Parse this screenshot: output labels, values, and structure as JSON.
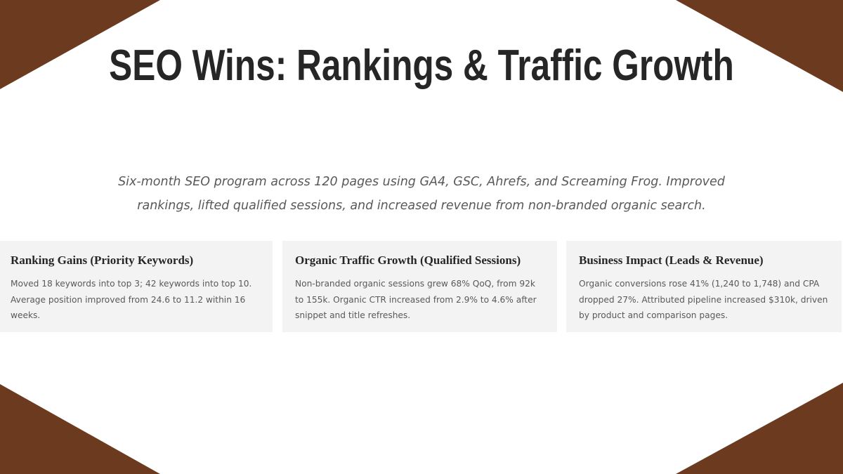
{
  "colors": {
    "accent": "#6b3a1f",
    "card_background": "#f3f3f3",
    "title": "#262626"
  },
  "title": "SEO Wins: Rankings & Traffic Growth",
  "subtitle": "Six-month SEO program across 120 pages using GA4, GSC, Ahrefs, and Screaming Frog. Improved rankings, lifted qualified sessions, and increased revenue from non-branded organic search.",
  "cards": [
    {
      "heading": "Ranking Gains (Priority Keywords)",
      "body": "Moved 18 keywords into top 3; 42 keywords into top 10. Average position improved from 24.6 to 11.2 within 16 weeks."
    },
    {
      "heading": "Organic Traffic Growth (Qualified Sessions)",
      "body": "Non-branded organic sessions grew 68% QoQ, from 92k to 155k. Organic CTR increased from 2.9% to 4.6% after snippet and title refreshes."
    },
    {
      "heading": "Business Impact (Leads & Revenue)",
      "body": "Organic conversions rose 41% (1,240 to 1,748) and CPA dropped 27%. Attributed pipeline increased $310k, driven by product and comparison pages."
    }
  ]
}
